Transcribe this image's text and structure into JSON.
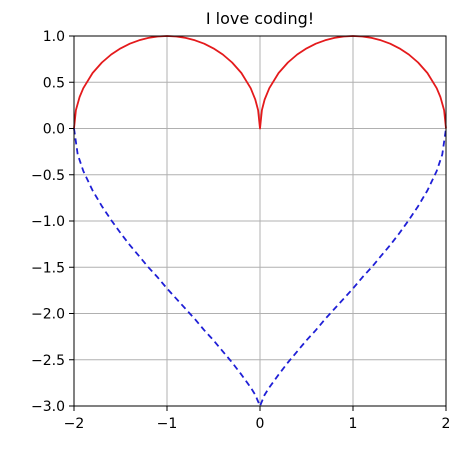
{
  "chart_data": {
    "type": "line",
    "title": "I love coding!",
    "xlabel": "",
    "ylabel": "",
    "xlim": [
      -2,
      2
    ],
    "ylim": [
      -3,
      1
    ],
    "grid": true,
    "x_ticks": [
      -2,
      -1,
      0,
      1,
      2
    ],
    "x_tick_labels": [
      "−2",
      "−1",
      "0",
      "1",
      "2"
    ],
    "y_ticks": [
      1.0,
      0.5,
      0.0,
      -0.5,
      -1.0,
      -1.5,
      -2.0,
      -2.5,
      -3.0
    ],
    "y_tick_labels": [
      "1.0",
      "0.5",
      "0.0",
      "−0.5",
      "−1.0",
      "−1.5",
      "−2.0",
      "−2.5",
      "−3.0"
    ],
    "series": [
      {
        "color": "#e41a1c",
        "style": "solid",
        "x": [
          -2.0,
          -1.98,
          -1.94,
          -1.9,
          -1.8,
          -1.7,
          -1.6,
          -1.5,
          -1.4,
          -1.3,
          -1.2,
          -1.1,
          -1.0,
          -0.9,
          -0.8,
          -0.7,
          -0.6,
          -0.5,
          -0.4,
          -0.3,
          -0.2,
          -0.1,
          -0.05,
          -0.02,
          0.0,
          0.02,
          0.05,
          0.1,
          0.2,
          0.3,
          0.4,
          0.5,
          0.6,
          0.7,
          0.8,
          0.9,
          1.0,
          1.1,
          1.2,
          1.3,
          1.4,
          1.5,
          1.6,
          1.7,
          1.8,
          1.9,
          1.94,
          1.98,
          2.0
        ],
        "y": [
          0.0,
          0.199,
          0.341,
          0.436,
          0.6,
          0.714,
          0.8,
          0.866,
          0.917,
          0.954,
          0.98,
          0.995,
          1.0,
          0.995,
          0.98,
          0.954,
          0.917,
          0.866,
          0.8,
          0.714,
          0.6,
          0.436,
          0.312,
          0.199,
          0.0,
          0.199,
          0.312,
          0.436,
          0.6,
          0.714,
          0.8,
          0.866,
          0.917,
          0.954,
          0.98,
          0.995,
          1.0,
          0.995,
          0.98,
          0.954,
          0.917,
          0.866,
          0.8,
          0.714,
          0.6,
          0.436,
          0.341,
          0.199,
          0.0
        ]
      },
      {
        "color": "#1f1fd6",
        "style": "dashed",
        "x": [
          -2.0,
          -1.96,
          -1.9,
          -1.8,
          -1.7,
          -1.6,
          -1.5,
          -1.4,
          -1.3,
          -1.2,
          -1.1,
          -1.0,
          -0.9,
          -0.8,
          -0.7,
          -0.6,
          -0.5,
          -0.4,
          -0.3,
          -0.2,
          -0.1,
          -0.05,
          0.0,
          0.05,
          0.1,
          0.2,
          0.3,
          0.4,
          0.5,
          0.6,
          0.7,
          0.8,
          0.9,
          1.0,
          1.1,
          1.2,
          1.3,
          1.4,
          1.5,
          1.6,
          1.7,
          1.8,
          1.9,
          1.96,
          2.0
        ],
        "y": [
          0.0,
          -0.28,
          -0.46,
          -0.67,
          -0.84,
          -0.99,
          -1.13,
          -1.26,
          -1.38,
          -1.5,
          -1.61,
          -1.73,
          -1.84,
          -1.95,
          -2.06,
          -2.18,
          -2.29,
          -2.41,
          -2.53,
          -2.66,
          -2.8,
          -2.88,
          -3.0,
          -2.88,
          -2.8,
          -2.66,
          -2.53,
          -2.41,
          -2.29,
          -2.18,
          -2.06,
          -1.95,
          -1.84,
          -1.73,
          -1.61,
          -1.5,
          -1.38,
          -1.26,
          -1.13,
          -0.99,
          -0.84,
          -0.67,
          -0.46,
          -0.28,
          0.0
        ]
      }
    ]
  }
}
